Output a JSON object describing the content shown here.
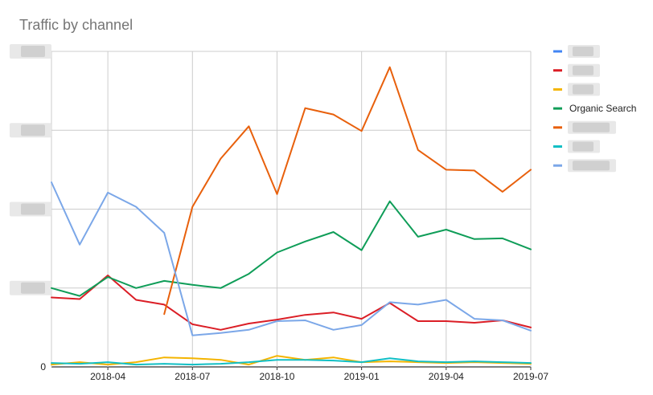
{
  "chart_data": {
    "type": "line",
    "title": "Traffic by channel",
    "xlabel": "",
    "ylabel": "",
    "x": [
      "2018-02",
      "2018-03",
      "2018-04",
      "2018-05",
      "2018-06",
      "2018-07",
      "2018-08",
      "2018-09",
      "2018-10",
      "2018-11",
      "2018-12",
      "2019-01",
      "2019-02",
      "2019-03",
      "2019-04",
      "2019-05",
      "2019-06",
      "2019-07"
    ],
    "x_ticks": [
      "2018-04",
      "2018-07",
      "2018-10",
      "2019-01",
      "2019-04",
      "2019-07"
    ],
    "x_range": [
      "2018-02",
      "2019-07"
    ],
    "y_ticks": [
      "0",
      "",
      "",
      "",
      ""
    ],
    "ylim": [
      0,
      4
    ],
    "grid": true,
    "legend_position": "right",
    "series": [
      {
        "name": "",
        "color": "#4285f4",
        "values": [
          null,
          null,
          null,
          null,
          null,
          null,
          null,
          null,
          null,
          null,
          null,
          null,
          null,
          null,
          null,
          null,
          null,
          null
        ]
      },
      {
        "name": "",
        "color": "#db1e26",
        "values": [
          0.88,
          0.86,
          1.16,
          0.85,
          0.79,
          0.54,
          0.47,
          0.55,
          0.6,
          0.66,
          0.69,
          0.61,
          0.81,
          0.58,
          0.58,
          0.56,
          0.59,
          0.5
        ]
      },
      {
        "name": "",
        "color": "#f4b400",
        "values": [
          0.03,
          0.06,
          0.03,
          0.06,
          0.12,
          0.11,
          0.09,
          0.03,
          0.14,
          0.09,
          0.12,
          0.06,
          0.07,
          0.06,
          0.05,
          0.06,
          0.05,
          0.04
        ]
      },
      {
        "name": "Organic Search",
        "color": "#0f9d58",
        "values": [
          1.0,
          0.9,
          1.14,
          1.0,
          1.09,
          1.04,
          1.0,
          1.18,
          1.45,
          1.59,
          1.71,
          1.48,
          2.1,
          1.65,
          1.74,
          1.62,
          1.63,
          1.49
        ]
      },
      {
        "name": "",
        "color": "#e8600c",
        "values": [
          null,
          null,
          null,
          null,
          0.67,
          2.03,
          2.64,
          3.05,
          2.19,
          3.28,
          3.2,
          2.99,
          3.8,
          2.75,
          2.5,
          2.49,
          2.22,
          2.5
        ]
      },
      {
        "name": "",
        "color": "#12bfc4",
        "values": [
          0.05,
          0.04,
          0.06,
          0.03,
          0.04,
          0.03,
          0.04,
          0.06,
          0.09,
          0.09,
          0.08,
          0.06,
          0.11,
          0.07,
          0.06,
          0.07,
          0.06,
          0.05
        ]
      },
      {
        "name": "",
        "color": "#7ba7e8",
        "values": [
          2.34,
          1.55,
          2.21,
          2.03,
          1.7,
          0.4,
          0.43,
          0.47,
          0.58,
          0.59,
          0.47,
          0.53,
          0.82,
          0.79,
          0.85,
          0.61,
          0.59,
          0.46
        ]
      }
    ]
  }
}
